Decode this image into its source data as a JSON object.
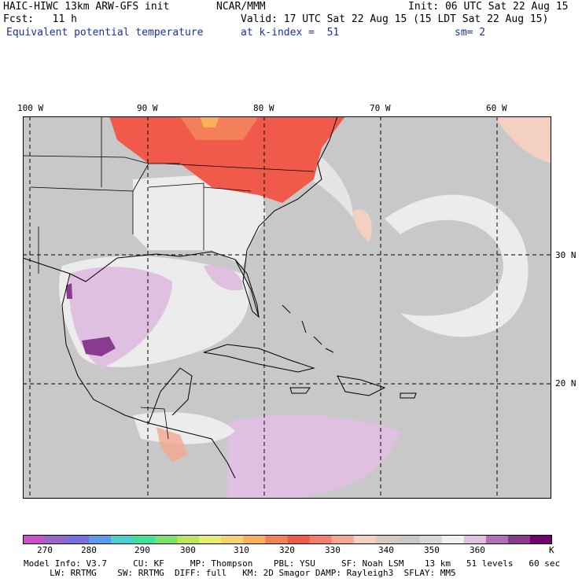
{
  "header": {
    "model_title": "HAIC-HIWC 13km ARW-GFS init",
    "org": "NCAR/MMM",
    "init": "Init: 06 UTC Sat 22 Aug 15",
    "fcst": "Fcst:   11 h",
    "valid": "Valid: 17 UTC Sat 22 Aug 15 (15 LDT Sat 22 Aug 15)",
    "field": "Equivalent potential temperature",
    "level": "at k-index =  51",
    "smooth": "sm= 2"
  },
  "axes": {
    "lon_labels": [
      "100 W",
      "90 W",
      "80 W",
      "70 W",
      "60 W"
    ],
    "lat_labels": [
      "30 N",
      "20 N"
    ]
  },
  "colorbar": {
    "labels": [
      "270",
      "280",
      "290",
      "300",
      "310",
      "320",
      "330",
      "340",
      "350",
      "360"
    ],
    "unit": "K",
    "colors": [
      "#c84fc8",
      "#9966cc",
      "#7b6fe0",
      "#5a9ae8",
      "#4ad0d0",
      "#3ee29a",
      "#7ae06e",
      "#b8e85a",
      "#e8ec6a",
      "#f4d070",
      "#f8b05a",
      "#f4805a",
      "#f05a4a",
      "#f47c6a",
      "#f4a890",
      "#f4d0c0",
      "#d8c8c0",
      "#c8c8c8",
      "#d8d8d8",
      "#f0f0f0",
      "#e0c0e0",
      "#b070b8",
      "#8a3a90",
      "#700070"
    ]
  },
  "footer": {
    "line1": "Model Info: V3.7     CU: KF     MP: Thompson    PBL: YSU     SF: Noah LSM    13 km   51 levels   60 sec",
    "line2": "     LW: RRTMG    SW: RRTMG  DIFF: full   KM: 2D Smagor DAMP: Rayleigh3  SFLAY: MM5"
  },
  "colors": {
    "ocean_gray": "#c8c8c8",
    "land_light": "#ececec",
    "warm_red": "#f05a4a",
    "lavender": "#e0c0e0",
    "purple": "#8a3a90",
    "title_blue": "#1a2fa8"
  }
}
